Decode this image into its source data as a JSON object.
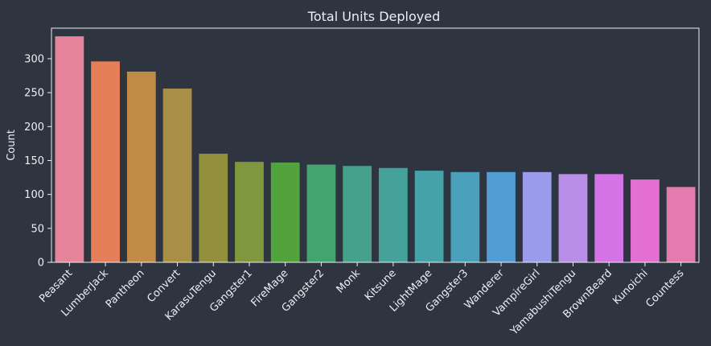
{
  "chart_data": {
    "type": "bar",
    "title": "Total Units Deployed",
    "xlabel": "",
    "ylabel": "Count",
    "ylim": [
      0,
      345
    ],
    "yticks": [
      0,
      50,
      100,
      150,
      200,
      250,
      300
    ],
    "grid": false,
    "categories": [
      "Peasant",
      "LumberJack",
      "Pantheon",
      "Convert",
      "KarasuTengu",
      "Gangster1",
      "FireMage",
      "Gangster2",
      "Monk",
      "Kitsune",
      "LightMage",
      "Gangster3",
      "Wanderer",
      "VampireGirl",
      "YamabushiTengu",
      "BrownBeard",
      "Kunoichi",
      "Countess"
    ],
    "values": [
      333,
      296,
      281,
      256,
      160,
      148,
      147,
      144,
      142,
      139,
      135,
      133,
      133,
      133,
      130,
      130,
      122,
      111
    ],
    "colors": [
      "#e5839a",
      "#e67e59",
      "#c08b47",
      "#a88f45",
      "#938f3d",
      "#7f983e",
      "#52a23e",
      "#43a46e",
      "#45a18c",
      "#45a29a",
      "#45a2a8",
      "#4a9fba",
      "#529dd6",
      "#9a9ceb",
      "#b98ee7",
      "#d574e7",
      "#e26fd1",
      "#e57aaf"
    ]
  }
}
